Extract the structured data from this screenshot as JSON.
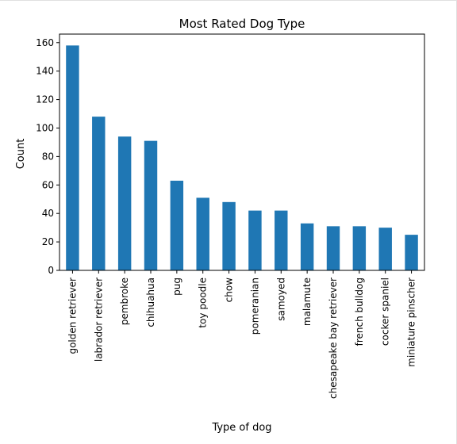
{
  "chart_data": {
    "type": "bar",
    "title": "Most Rated Dog Type",
    "xlabel": "Type of dog",
    "ylabel": "Count",
    "categories": [
      "golden retriever",
      "labrador retriever",
      "pembroke",
      "chihuahua",
      "pug",
      "toy poodle",
      "chow",
      "pomeranian",
      "samoyed",
      "malamute",
      "chesapeake bay retriever",
      "french bulldog",
      "cocker spaniel",
      "miniature pinscher"
    ],
    "values": [
      158,
      108,
      94,
      91,
      63,
      51,
      48,
      42,
      42,
      33,
      31,
      31,
      30,
      25
    ],
    "ylim": [
      0,
      166
    ],
    "yticks": [
      0,
      20,
      40,
      60,
      80,
      100,
      120,
      140,
      160
    ],
    "bar_color": "#1f77b4",
    "grid": false,
    "legend": "none"
  }
}
